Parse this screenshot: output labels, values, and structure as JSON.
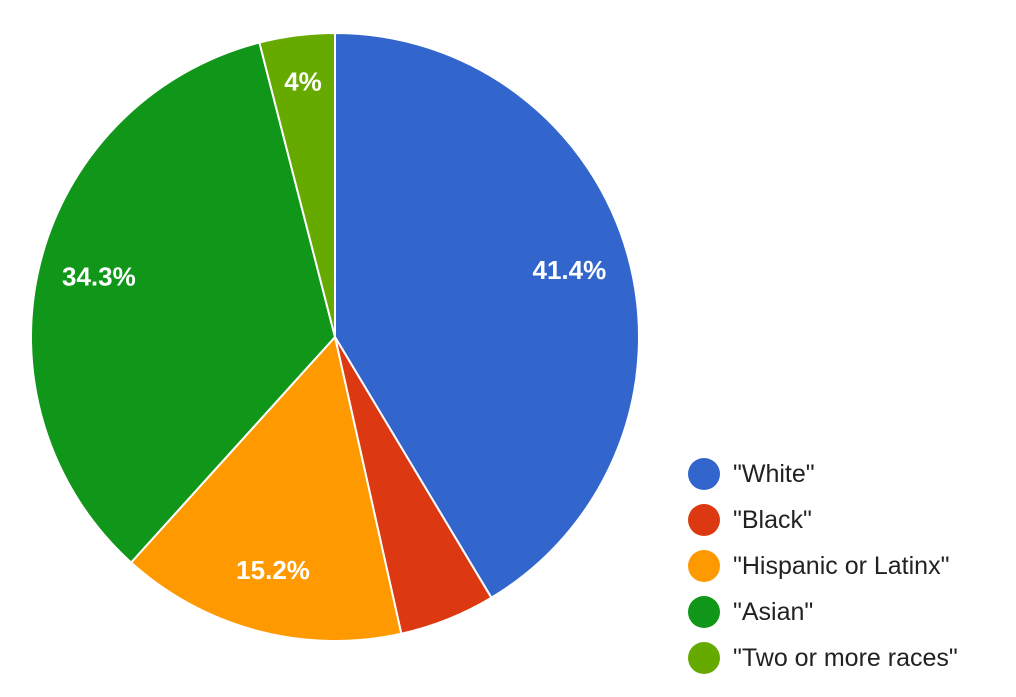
{
  "chart_data": {
    "type": "pie",
    "categories": [
      "\"White\"",
      "\"Black\"",
      "\"Hispanic or Latinx\"",
      "\"Asian\"",
      "\"Two or more races\""
    ],
    "values": [
      41.4,
      5.1,
      15.2,
      34.3,
      4.0
    ],
    "data_labels": [
      "41.4%",
      "",
      "15.2%",
      "34.3%",
      "4%"
    ],
    "colors": [
      "#3366cc",
      "#dc3912",
      "#ff9900",
      "#109618",
      "#66aa00"
    ],
    "start_angle_deg": 0,
    "direction": "clockwise",
    "legend_position": "right-bottom"
  }
}
